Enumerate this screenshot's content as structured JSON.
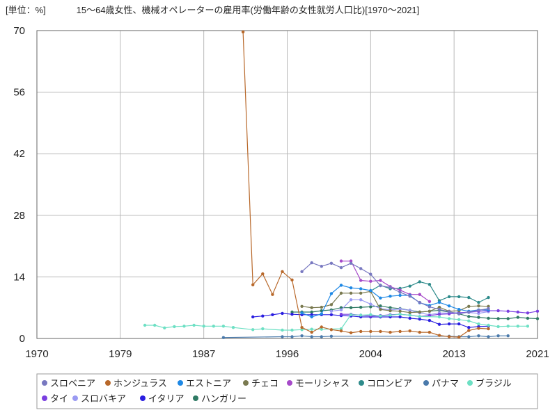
{
  "chart_data": {
    "type": "line",
    "unit_label": "[単位：%]",
    "title": "15～64歳女性、機械オペレーターの雇用率(労働年齢の女性就労人口比)[1970～2021]",
    "xlim": [
      1970,
      2021
    ],
    "ylim": [
      0,
      70
    ],
    "xticks": [
      1970,
      1978.5,
      1987,
      1995.5,
      2004,
      2012.5,
      2021
    ],
    "xtick_labels": [
      "1970",
      "1979",
      "1987",
      "1996",
      "2004",
      "2013",
      "2021"
    ],
    "yticks": [
      0,
      14,
      28,
      42,
      56,
      70
    ],
    "grid": true,
    "legend_position": "bottom",
    "series": [
      {
        "name": "スロベニア",
        "color": "#7878c0",
        "points": [
          [
            1997,
            15.2
          ],
          [
            1998,
            17.2
          ],
          [
            1999,
            16.4
          ],
          [
            2000,
            17.1
          ],
          [
            2001,
            16.1
          ],
          [
            2002,
            17.1
          ],
          [
            2003,
            15.9
          ],
          [
            2004,
            14.6
          ],
          [
            2005,
            12.0
          ],
          [
            2006,
            11.6
          ],
          [
            2007,
            10.5
          ],
          [
            2008,
            9.6
          ],
          [
            2009,
            8.2
          ],
          [
            2010,
            7.2
          ],
          [
            2011,
            6.6
          ],
          [
            2012,
            6.1
          ],
          [
            2013,
            5.6
          ],
          [
            2014,
            6.0
          ],
          [
            2015,
            6.4
          ],
          [
            2016,
            6.8
          ]
        ]
      },
      {
        "name": "ホンジュラス",
        "color": "#b8682a",
        "points": [
          [
            1991,
            69.7
          ],
          [
            1992,
            12.2
          ],
          [
            1993,
            14.7
          ],
          [
            1994,
            10.0
          ],
          [
            1995,
            15.2
          ],
          [
            1996,
            13.3
          ],
          [
            1997,
            2.5
          ],
          [
            1998,
            1.4
          ],
          [
            1999,
            2.6
          ],
          [
            2000,
            2.0
          ],
          [
            2001,
            1.7
          ],
          [
            2002,
            1.3
          ],
          [
            2003,
            1.6
          ],
          [
            2004,
            1.6
          ],
          [
            2005,
            1.6
          ],
          [
            2006,
            1.4
          ],
          [
            2007,
            1.6
          ],
          [
            2008,
            1.7
          ],
          [
            2009,
            1.4
          ],
          [
            2010,
            1.4
          ],
          [
            2011,
            0.7
          ],
          [
            2012,
            0.4
          ],
          [
            2013,
            0.3
          ],
          [
            2014,
            1.8
          ],
          [
            2015,
            2.3
          ],
          [
            2016,
            2.2
          ]
        ]
      },
      {
        "name": "エストニア",
        "color": "#1e88e5",
        "points": [
          [
            1997,
            5.8
          ],
          [
            1998,
            4.9
          ],
          [
            1999,
            5.6
          ],
          [
            2000,
            10.2
          ],
          [
            2001,
            12.1
          ],
          [
            2002,
            11.5
          ],
          [
            2003,
            11.3
          ],
          [
            2004,
            10.9
          ],
          [
            2005,
            9.2
          ],
          [
            2006,
            9.6
          ],
          [
            2007,
            9.8
          ],
          [
            2008,
            9.8
          ],
          [
            2009,
            8.1
          ],
          [
            2010,
            7.5
          ],
          [
            2011,
            8.2
          ],
          [
            2012,
            7.4
          ],
          [
            2013,
            6.6
          ],
          [
            2014,
            6.2
          ],
          [
            2015,
            6.5
          ],
          [
            2016,
            6.5
          ]
        ]
      },
      {
        "name": "チェコ",
        "color": "#7a7a50",
        "points": [
          [
            1997,
            7.3
          ],
          [
            1998,
            7.0
          ],
          [
            1999,
            7.1
          ],
          [
            2000,
            7.7
          ],
          [
            2001,
            10.3
          ],
          [
            2002,
            10.3
          ],
          [
            2003,
            10.3
          ],
          [
            2004,
            10.7
          ],
          [
            2005,
            6.6
          ],
          [
            2006,
            6.3
          ],
          [
            2007,
            6.2
          ],
          [
            2008,
            5.9
          ],
          [
            2009,
            6.0
          ],
          [
            2010,
            6.2
          ],
          [
            2011,
            7.1
          ],
          [
            2012,
            6.2
          ],
          [
            2013,
            6.3
          ],
          [
            2014,
            7.3
          ],
          [
            2015,
            7.4
          ],
          [
            2016,
            7.3
          ]
        ]
      },
      {
        "name": "モーリシャス",
        "color": "#a64ac9",
        "points": [
          [
            2001,
            17.6
          ],
          [
            2002,
            17.6
          ],
          [
            2003,
            13.2
          ],
          [
            2004,
            13.0
          ],
          [
            2005,
            13.2
          ],
          [
            2006,
            11.8
          ],
          [
            2007,
            11.0
          ],
          [
            2008,
            10.0
          ],
          [
            2009,
            10.0
          ],
          [
            2010,
            8.4
          ]
        ]
      },
      {
        "name": "コロンビア",
        "color": "#2e8b8b",
        "points": [
          [
            2004,
            10.8
          ],
          [
            2005,
            12.1
          ],
          [
            2006,
            11.3
          ],
          [
            2007,
            11.4
          ],
          [
            2008,
            11.9
          ],
          [
            2009,
            12.9
          ],
          [
            2010,
            12.3
          ],
          [
            2011,
            8.6
          ],
          [
            2012,
            9.5
          ],
          [
            2013,
            9.5
          ],
          [
            2014,
            9.3
          ],
          [
            2015,
            8.2
          ],
          [
            2016,
            9.3
          ]
        ]
      },
      {
        "name": "パナマ",
        "color": "#4a7aab",
        "points": [
          [
            1989,
            0.2
          ],
          [
            1995,
            0.4
          ],
          [
            1996,
            0.4
          ],
          [
            1997,
            0.6
          ],
          [
            1998,
            0.4
          ],
          [
            1999,
            0.4
          ],
          [
            2000,
            0.5
          ],
          [
            2012,
            0.5
          ],
          [
            2013,
            0.4
          ],
          [
            2014,
            0.4
          ],
          [
            2015,
            0.6
          ],
          [
            2016,
            0.4
          ],
          [
            2017,
            0.6
          ],
          [
            2018,
            0.6
          ]
        ]
      },
      {
        "name": "ブラジル",
        "color": "#6de0c4",
        "points": [
          [
            1981,
            3.0
          ],
          [
            1982,
            3.0
          ],
          [
            1983,
            2.4
          ],
          [
            1984,
            2.7
          ],
          [
            1985,
            2.8
          ],
          [
            1986,
            3.0
          ],
          [
            1987,
            2.8
          ],
          [
            1988,
            2.8
          ],
          [
            1989,
            2.8
          ],
          [
            1990,
            2.5
          ],
          [
            1992,
            2.0
          ],
          [
            1993,
            2.2
          ],
          [
            1995,
            1.9
          ],
          [
            1996,
            1.9
          ],
          [
            1997,
            2.0
          ],
          [
            1998,
            2.1
          ],
          [
            1999,
            2.1
          ],
          [
            2001,
            2.2
          ],
          [
            2002,
            5.4
          ],
          [
            2003,
            5.3
          ],
          [
            2004,
            5.4
          ],
          [
            2005,
            5.1
          ],
          [
            2006,
            5.3
          ],
          [
            2007,
            5.5
          ],
          [
            2008,
            5.3
          ],
          [
            2009,
            5.0
          ],
          [
            2011,
            4.9
          ],
          [
            2012,
            4.5
          ],
          [
            2013,
            4.3
          ],
          [
            2014,
            4.0
          ],
          [
            2015,
            3.3
          ],
          [
            2016,
            3.0
          ],
          [
            2017,
            2.7
          ],
          [
            2018,
            2.8
          ],
          [
            2019,
            2.8
          ],
          [
            2020,
            2.8
          ]
        ]
      },
      {
        "name": "タイ",
        "color": "#7a3fe0",
        "points": [
          [
            2001,
            5.5
          ],
          [
            2002,
            5.5
          ],
          [
            2003,
            5.3
          ],
          [
            2004,
            5.1
          ],
          [
            2005,
            5.2
          ],
          [
            2006,
            5.4
          ],
          [
            2007,
            5.5
          ],
          [
            2008,
            5.3
          ],
          [
            2009,
            5.0
          ],
          [
            2010,
            5.2
          ],
          [
            2011,
            5.5
          ],
          [
            2012,
            5.6
          ],
          [
            2013,
            5.8
          ],
          [
            2014,
            6.0
          ],
          [
            2015,
            6.2
          ],
          [
            2016,
            6.3
          ],
          [
            2017,
            6.3
          ],
          [
            2018,
            6.2
          ],
          [
            2019,
            6.0
          ],
          [
            2020,
            5.8
          ],
          [
            2021,
            6.2
          ]
        ]
      },
      {
        "name": "スロバキア",
        "color": "#9a9af2",
        "points": [
          [
            2000,
            6.2
          ],
          [
            2001,
            6.5
          ],
          [
            2002,
            8.8
          ],
          [
            2003,
            8.8
          ],
          [
            2004,
            7.8
          ],
          [
            2005,
            6.8
          ],
          [
            2006,
            6.5
          ],
          [
            2007,
            6.7
          ],
          [
            2008,
            6.4
          ],
          [
            2009,
            5.8
          ],
          [
            2010,
            5.4
          ],
          [
            2011,
            5.8
          ],
          [
            2012,
            5.8
          ],
          [
            2013,
            5.9
          ],
          [
            2014,
            5.9
          ],
          [
            2015,
            5.7
          ],
          [
            2016,
            6.1
          ]
        ]
      },
      {
        "name": "イタリア",
        "color": "#2a1ee0",
        "points": [
          [
            1992,
            4.9
          ],
          [
            1993,
            5.1
          ],
          [
            1994,
            5.4
          ],
          [
            1995,
            5.7
          ],
          [
            1996,
            5.5
          ],
          [
            1997,
            5.4
          ],
          [
            1998,
            5.4
          ],
          [
            1999,
            5.4
          ],
          [
            2000,
            5.4
          ],
          [
            2001,
            5.2
          ],
          [
            2002,
            5.1
          ],
          [
            2003,
            4.9
          ],
          [
            2004,
            4.9
          ],
          [
            2005,
            4.9
          ],
          [
            2006,
            4.9
          ],
          [
            2007,
            4.9
          ],
          [
            2008,
            4.6
          ],
          [
            2009,
            4.4
          ],
          [
            2010,
            4.1
          ],
          [
            2011,
            3.2
          ],
          [
            2012,
            3.3
          ],
          [
            2013,
            3.3
          ],
          [
            2014,
            2.5
          ],
          [
            2015,
            2.7
          ],
          [
            2016,
            2.8
          ]
        ]
      },
      {
        "name": "ハンガリー",
        "color": "#2f7a64",
        "points": [
          [
            1996,
            6.0
          ],
          [
            1997,
            6.0
          ],
          [
            1998,
            6.0
          ],
          [
            1999,
            6.3
          ],
          [
            2000,
            6.5
          ],
          [
            2001,
            7.0
          ],
          [
            2002,
            7.0
          ],
          [
            2003,
            7.1
          ],
          [
            2004,
            7.2
          ],
          [
            2005,
            7.4
          ],
          [
            2006,
            7.0
          ],
          [
            2007,
            6.8
          ],
          [
            2008,
            6.4
          ],
          [
            2009,
            6.0
          ],
          [
            2010,
            6.2
          ],
          [
            2011,
            6.4
          ],
          [
            2012,
            6.0
          ],
          [
            2013,
            5.6
          ],
          [
            2014,
            5.0
          ],
          [
            2015,
            4.8
          ],
          [
            2016,
            4.6
          ],
          [
            2017,
            4.5
          ],
          [
            2018,
            4.5
          ],
          [
            2019,
            4.8
          ],
          [
            2020,
            4.6
          ],
          [
            2021,
            4.5
          ]
        ]
      }
    ]
  }
}
